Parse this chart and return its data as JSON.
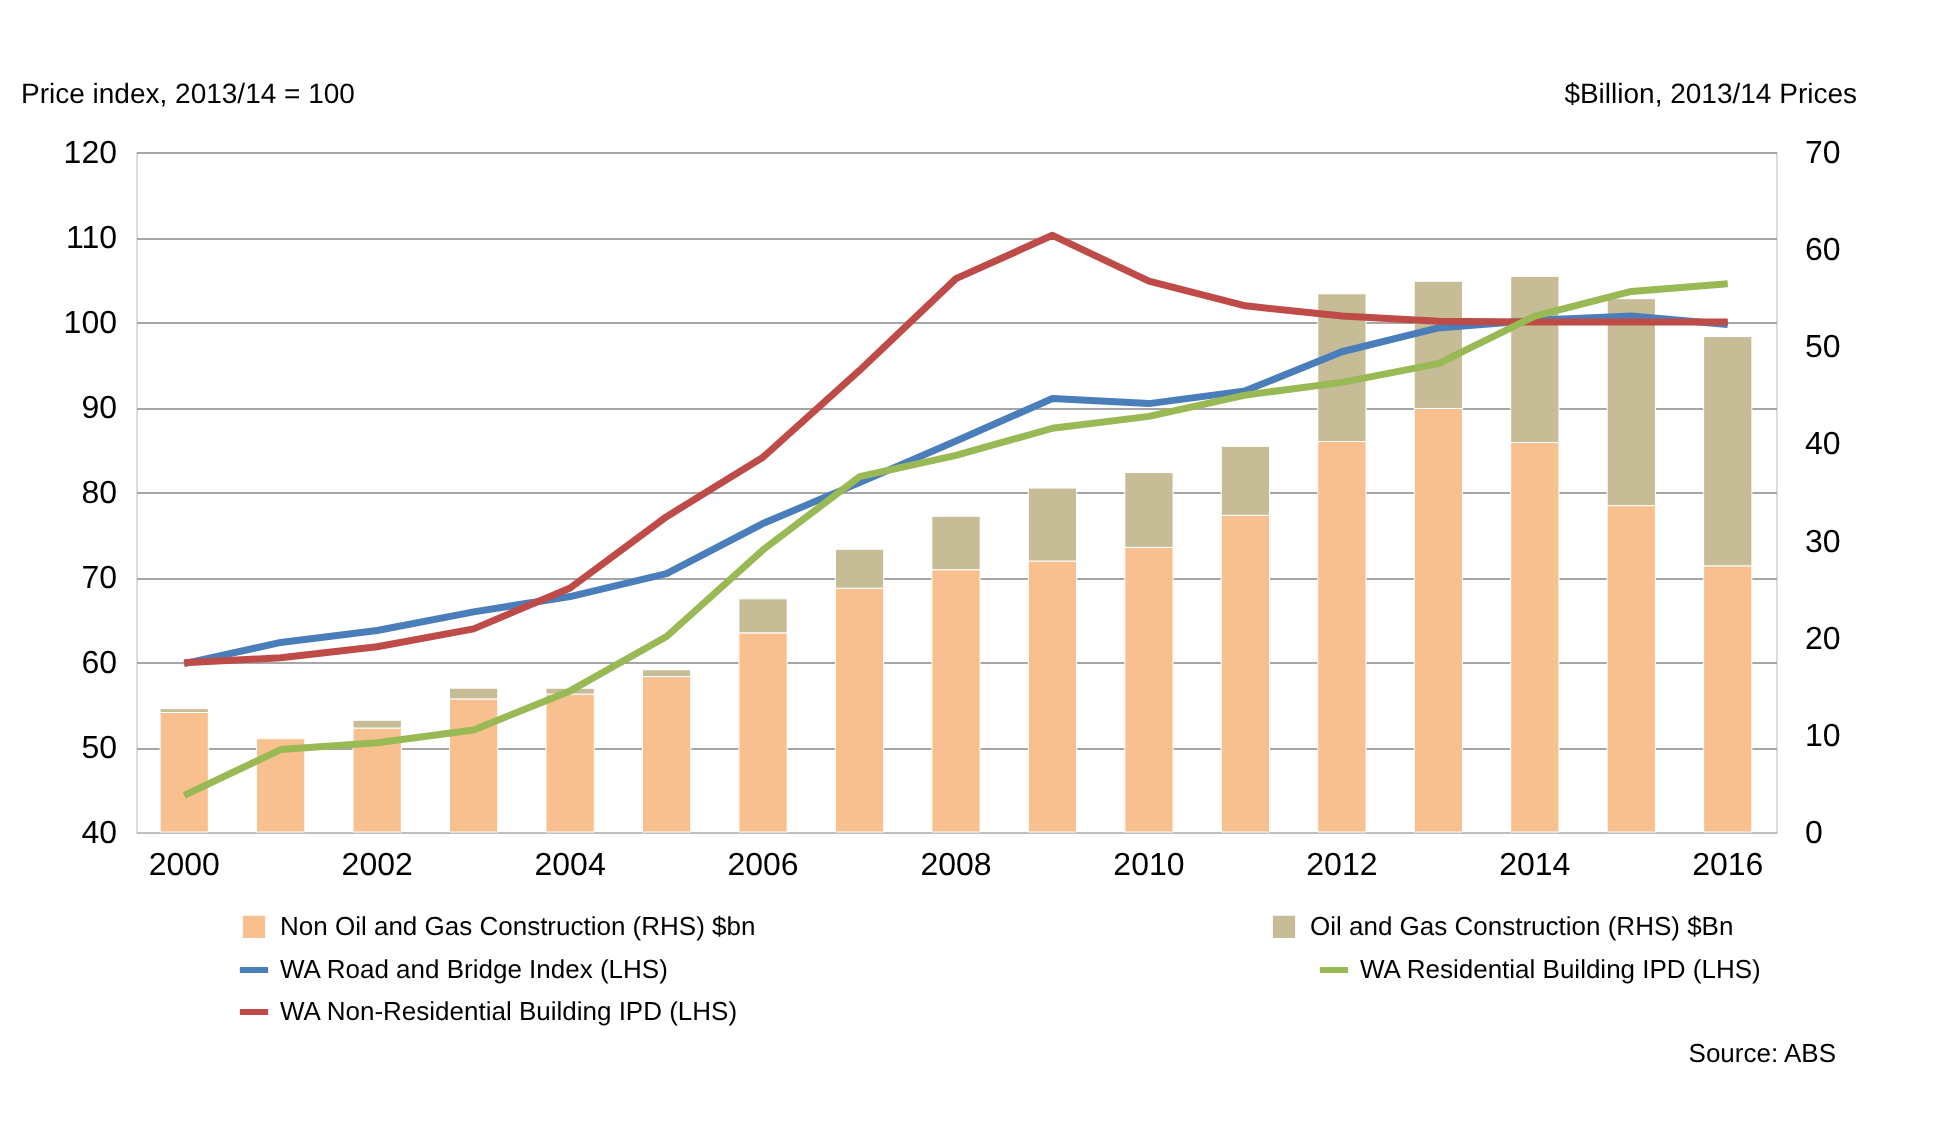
{
  "chart_data": {
    "type": "bar",
    "ylabel": "Price index, 2013/14 = 100",
    "y2label": "$Billion, 2013/14 Prices",
    "categories": [
      "2000",
      null,
      "2002",
      null,
      "2004",
      null,
      "2006",
      null,
      "2008",
      null,
      "2010",
      null,
      "2012",
      null,
      "2014",
      null,
      "2016"
    ],
    "stacked": true,
    "series": [
      {
        "name": "Non Oil and Gas Construction (RHS) $bn",
        "axis": "y2",
        "color": "#f9c08f",
        "values": [
          12.3,
          9.6,
          10.7,
          13.7,
          14.2,
          16.0,
          20.5,
          25.1,
          27.0,
          27.9,
          29.3,
          32.6,
          40.2,
          43.6,
          40.1,
          33.6,
          27.4
        ]
      },
      {
        "name": "Oil and Gas Construction (RHS) $Bn",
        "axis": "y2",
        "color": "#c6bc96",
        "values": [
          0.4,
          null,
          0.8,
          1.1,
          0.6,
          0.7,
          3.5,
          4.0,
          5.5,
          7.5,
          7.7,
          7.1,
          15.2,
          13.1,
          17.1,
          21.3,
          23.6
        ]
      },
      {
        "name": "WA Road and Bridge Index (LHS)",
        "type": "line",
        "color": "#4a7ebb",
        "values": [
          59.8,
          62.3,
          63.7,
          65.9,
          67.7,
          70.4,
          76.3,
          81.1,
          86.0,
          91.0,
          90.4,
          91.9,
          96.5,
          99.3,
          100.2,
          100.7,
          99.7
        ]
      },
      {
        "name": "WA Non-Residential Building IPD (LHS)",
        "type": "line",
        "color": "#be4b48",
        "values": [
          59.9,
          60.5,
          61.8,
          63.9,
          68.7,
          77.1,
          84.1,
          94.3,
          105.1,
          110.2,
          104.8,
          101.9,
          100.7,
          100.1,
          100.0,
          100.0,
          100.0
        ]
      },
      {
        "name": "WA Residential Building IPD (LHS)",
        "type": "line",
        "color": "#98b954",
        "values": [
          44.3,
          49.7,
          50.5,
          52.0,
          56.6,
          63.0,
          73.2,
          81.8,
          84.3,
          87.5,
          88.9,
          91.4,
          92.9,
          95.1,
          100.7,
          103.6,
          104.5
        ]
      }
    ],
    "ylim": [
      40,
      120
    ],
    "yticks": [
      40,
      50,
      60,
      70,
      80,
      90,
      100,
      110,
      120
    ],
    "y2lim": [
      0,
      70
    ],
    "y2ticks": [
      0,
      10,
      20,
      30,
      40,
      50,
      60,
      70
    ],
    "grid": "y",
    "legend": "bottom",
    "marker": "none",
    "line_style": "solid",
    "annotations": [
      "Source: ABS"
    ]
  }
}
